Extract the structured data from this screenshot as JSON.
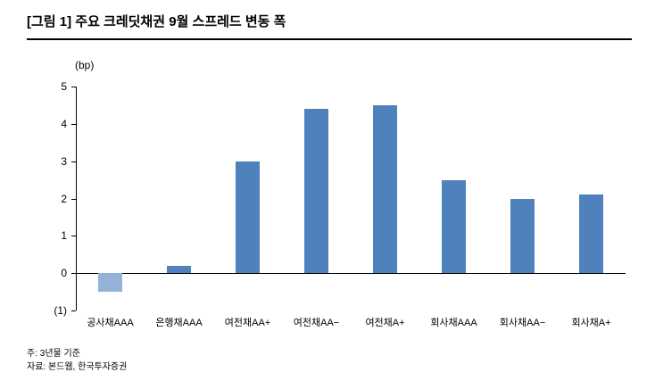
{
  "page": {
    "title": "[그림 1] 주요 크레딧채권 9월 스프레드 변동 폭",
    "notes": [
      "주: 3년물 기준",
      "자료: 본드웹, 한국투자증권"
    ]
  },
  "chart_data": {
    "type": "bar",
    "title": "[그림 1] 주요 크레딧채권 9월 스프레드 변동 폭",
    "unit_label": "(bp)",
    "categories": [
      "공사채AAA",
      "은행채AAA",
      "여전채AA+",
      "여전채AA−",
      "여전채A+",
      "회사채AAA",
      "회사채AA−",
      "회사채A+"
    ],
    "values": [
      -0.5,
      0.2,
      3.0,
      4.4,
      4.5,
      2.5,
      2.0,
      2.1
    ],
    "ylim": [
      -1,
      5
    ],
    "yticks": [
      5,
      4,
      3,
      2,
      1,
      0,
      -1
    ],
    "ytick_labels": [
      "5",
      "4",
      "3",
      "2",
      "1",
      "0",
      "(1)"
    ],
    "bar_color": "#4f81bd",
    "negative_bar_color": "#95b3d7",
    "grid": false,
    "legend": "none",
    "xlabel": "",
    "ylabel": "(bp)"
  }
}
